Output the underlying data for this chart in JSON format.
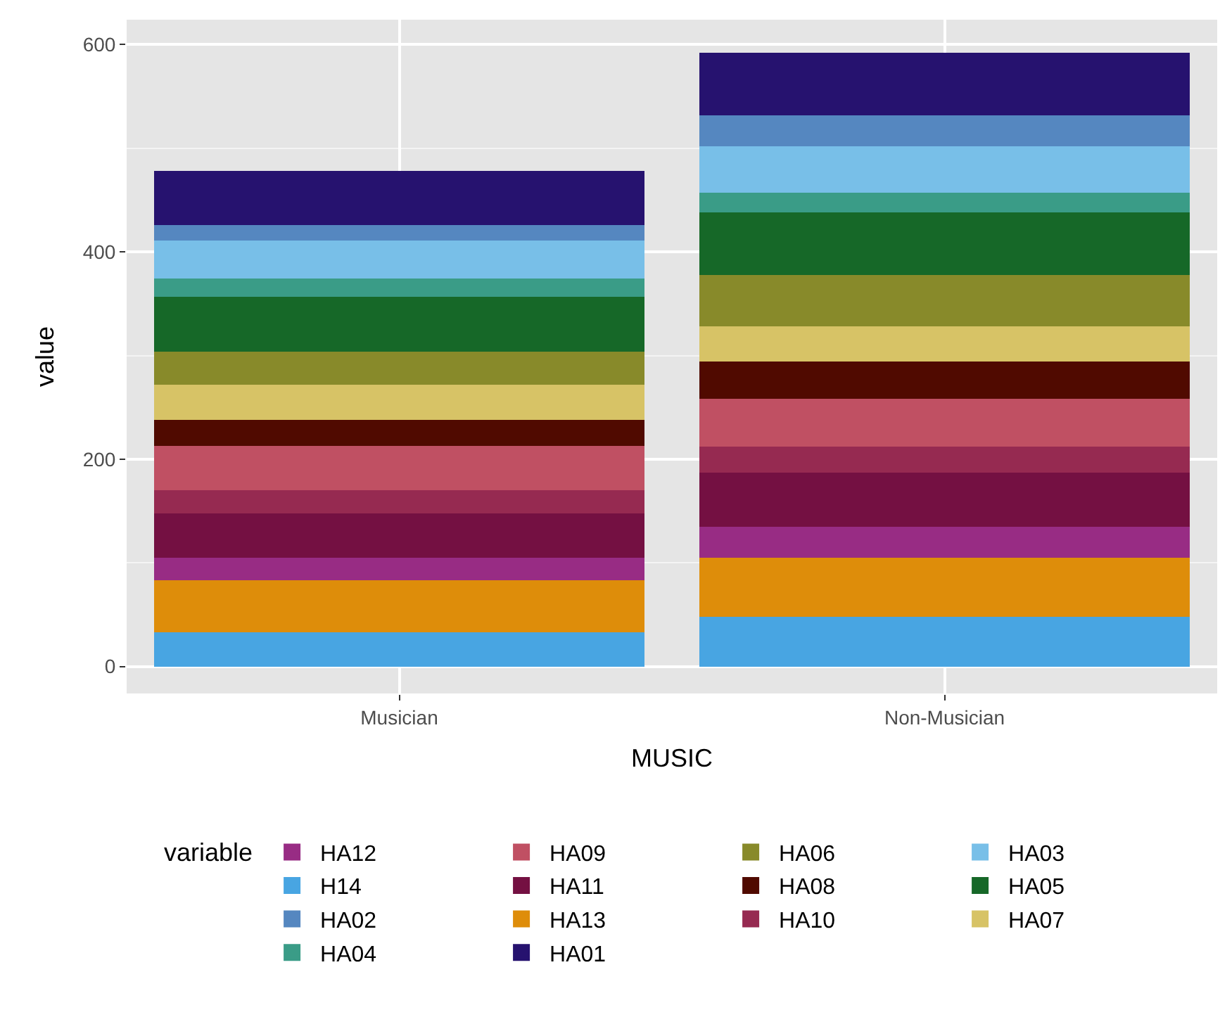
{
  "chart_data": {
    "type": "bar",
    "stacked": true,
    "xlabel": "MUSIC",
    "ylabel": "value",
    "legend_title": "variable",
    "legend": "bottom",
    "grid": true,
    "categories": [
      "Musician",
      "Non-Musician"
    ],
    "ylim": [
      -26,
      624
    ],
    "yticks": [
      0,
      200,
      400,
      600
    ],
    "series": [
      {
        "name": "H14",
        "color": "#48a5e2",
        "values": [
          33,
          48
        ]
      },
      {
        "name": "HA13",
        "color": "#de8d0a",
        "values": [
          50,
          57
        ]
      },
      {
        "name": "HA12",
        "color": "#982c84",
        "values": [
          22,
          30
        ]
      },
      {
        "name": "HA11",
        "color": "#741042",
        "values": [
          43,
          52
        ]
      },
      {
        "name": "HA10",
        "color": "#962a51",
        "values": [
          22,
          25
        ]
      },
      {
        "name": "HA09",
        "color": "#c05063",
        "values": [
          43,
          46
        ]
      },
      {
        "name": "HA08",
        "color": "#500a00",
        "values": [
          25,
          36
        ]
      },
      {
        "name": "HA07",
        "color": "#d7c366",
        "values": [
          34,
          34
        ]
      },
      {
        "name": "HA06",
        "color": "#888a2a",
        "values": [
          32,
          50
        ]
      },
      {
        "name": "HA05",
        "color": "#166828",
        "values": [
          53,
          60
        ]
      },
      {
        "name": "HA04",
        "color": "#3a9c87",
        "values": [
          17,
          19
        ]
      },
      {
        "name": "HA03",
        "color": "#78bfe8",
        "values": [
          37,
          45
        ]
      },
      {
        "name": "HA02",
        "color": "#5587c0",
        "values": [
          15,
          30
        ]
      },
      {
        "name": "HA01",
        "color": "#26126f",
        "values": [
          52,
          60
        ]
      }
    ]
  }
}
